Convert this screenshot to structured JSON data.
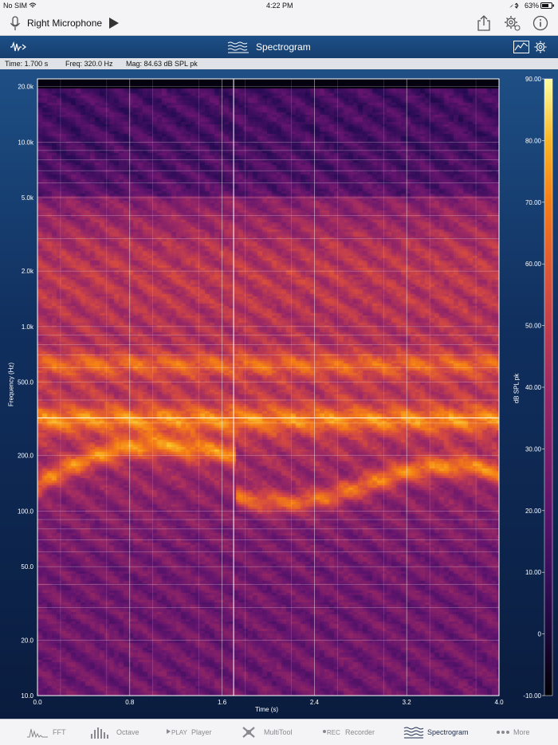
{
  "status": {
    "carrier": "No SIM",
    "time": "4:22 PM",
    "battery": "63%"
  },
  "toolbar": {
    "input_label": "Right Microphone"
  },
  "header": {
    "title": "Spectrogram"
  },
  "readout": {
    "time": "Time: 1.700 s",
    "freq": "Freq: 320.0 Hz",
    "mag": "Mag: 84.63 dB SPL pk"
  },
  "chart_data": {
    "type": "heatmap",
    "xlabel": "Time (s)",
    "ylabel": "Frequency (Hz)",
    "colorbar_label": "dB SPL pk",
    "xlim": [
      0.0,
      4.0
    ],
    "ylim": [
      10,
      22000
    ],
    "y_scale": "log",
    "x_ticks": [
      "0.0",
      "0.8",
      "1.6",
      "2.4",
      "3.2",
      "4.0"
    ],
    "y_ticks": [
      "20.0k",
      "10.0k",
      "5.0k",
      "2.0k",
      "1.0k",
      "500.0",
      "200.0",
      "100.0",
      "50.0",
      "20.0",
      "10.0"
    ],
    "colorbar_ticks": [
      "90.00",
      "80.00",
      "70.00",
      "60.00",
      "50.00",
      "40.00",
      "30.00",
      "20.00",
      "10.00",
      "0",
      "-10.00"
    ],
    "clim": [
      -10,
      90
    ],
    "cursor": {
      "time": 1.7,
      "freq": 320.0
    }
  },
  "tabs": [
    {
      "label": "FFT",
      "icon": "fft-icon"
    },
    {
      "label": "Octave",
      "icon": "octave-icon"
    },
    {
      "label": "Player",
      "icon": "play-icon"
    },
    {
      "label": "MultiTool",
      "icon": "multitool-icon"
    },
    {
      "label": "Recorder",
      "icon": "rec-icon"
    },
    {
      "label": "Spectrogram",
      "icon": "spectrogram-icon",
      "active": true
    },
    {
      "label": "More",
      "icon": "more-icon"
    }
  ]
}
